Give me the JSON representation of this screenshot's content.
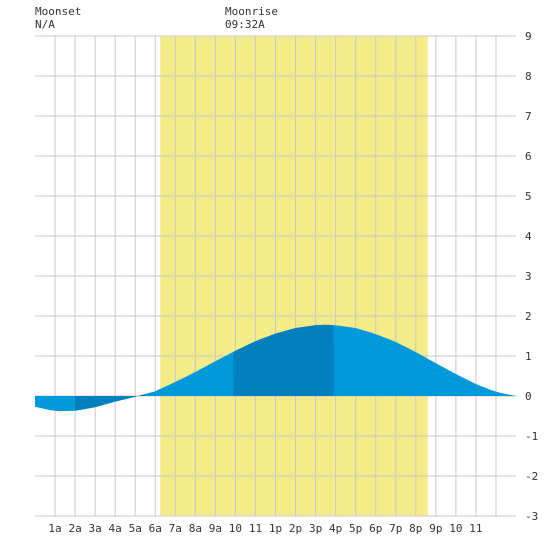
{
  "header": {
    "moonset_label": "Moonset",
    "moonset_value": "N/A",
    "moonrise_label": "Moonrise",
    "moonrise_value": "09:32A"
  },
  "colors": {
    "daylight": "#f4ec88",
    "grid": "#c8c8c8",
    "background": "#ffffff",
    "tide_light": "#0299db",
    "tide_dark": "#027fbd"
  },
  "chart_data": {
    "type": "area",
    "title": "",
    "xlabel": "",
    "ylabel": "",
    "ylim": [
      -3,
      9
    ],
    "xlim": [
      0,
      24
    ],
    "grid": true,
    "y_ticks": [
      "-3",
      "-2",
      "-1",
      "0",
      "1",
      "2",
      "3",
      "4",
      "5",
      "6",
      "7",
      "8",
      "9"
    ],
    "x_ticks": [
      {
        "x": 1,
        "label": "1a"
      },
      {
        "x": 2,
        "label": "2a"
      },
      {
        "x": 3,
        "label": "3a"
      },
      {
        "x": 4,
        "label": "4a"
      },
      {
        "x": 5,
        "label": "5a"
      },
      {
        "x": 6,
        "label": "6a"
      },
      {
        "x": 7,
        "label": "7a"
      },
      {
        "x": 8,
        "label": "8a"
      },
      {
        "x": 9,
        "label": "9a"
      },
      {
        "x": 10,
        "label": "10"
      },
      {
        "x": 11,
        "label": "11"
      },
      {
        "x": 12,
        "label": "1p"
      },
      {
        "x": 13,
        "label": "2p"
      },
      {
        "x": 14,
        "label": "3p"
      },
      {
        "x": 15,
        "label": "4p"
      },
      {
        "x": 16,
        "label": "5p"
      },
      {
        "x": 17,
        "label": "6p"
      },
      {
        "x": 18,
        "label": "7p"
      },
      {
        "x": 19,
        "label": "8p"
      },
      {
        "x": 20,
        "label": "9p"
      },
      {
        "x": 21,
        "label": "10"
      },
      {
        "x": 22,
        "label": "11"
      }
    ],
    "daylight_window": [
      6.25,
      19.6
    ],
    "dark_bands": [
      [
        2,
        5.5
      ],
      [
        9.9,
        14.9
      ]
    ],
    "series": [
      {
        "x": [
          0,
          1,
          2,
          3,
          4,
          5,
          5.5,
          6,
          7,
          8,
          9,
          10,
          11,
          12,
          13,
          14,
          14.5,
          15,
          16,
          17,
          18,
          19,
          20,
          21,
          22,
          23,
          24
        ],
        "y": [
          -0.27,
          -0.38,
          -0.37,
          -0.28,
          -0.14,
          -0.02,
          0.05,
          0.12,
          0.35,
          0.6,
          0.87,
          1.13,
          1.37,
          1.56,
          1.7,
          1.77,
          1.78,
          1.77,
          1.7,
          1.55,
          1.35,
          1.1,
          0.82,
          0.55,
          0.3,
          0.1,
          0.0
        ]
      }
    ]
  }
}
